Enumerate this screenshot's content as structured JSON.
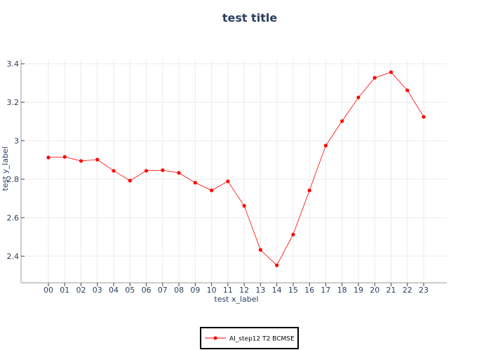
{
  "chart_data": {
    "type": "line",
    "title": "test title",
    "xlabel": "test x_label",
    "ylabel": "test y_label",
    "categories": [
      "00",
      "01",
      "02",
      "03",
      "04",
      "05",
      "06",
      "07",
      "08",
      "09",
      "10",
      "11",
      "12",
      "13",
      "14",
      "15",
      "16",
      "17",
      "18",
      "19",
      "20",
      "21",
      "22",
      "23"
    ],
    "series": [
      {
        "name": "AI_step12 T2 BCMSE",
        "color": "#ff0000",
        "values": [
          2.913,
          2.916,
          2.895,
          2.902,
          2.844,
          2.793,
          2.844,
          2.847,
          2.833,
          2.782,
          2.742,
          2.789,
          2.662,
          2.433,
          2.353,
          2.513,
          2.742,
          2.975,
          3.102,
          3.225,
          3.327,
          3.356,
          3.262,
          3.124
        ]
      }
    ],
    "yticks": [
      "2.4",
      "2.6",
      "2.8",
      "3",
      "3.2",
      "3.4"
    ],
    "ylim": [
      2.262,
      3.422
    ],
    "grid": true,
    "legend_position": "bottom-center"
  }
}
